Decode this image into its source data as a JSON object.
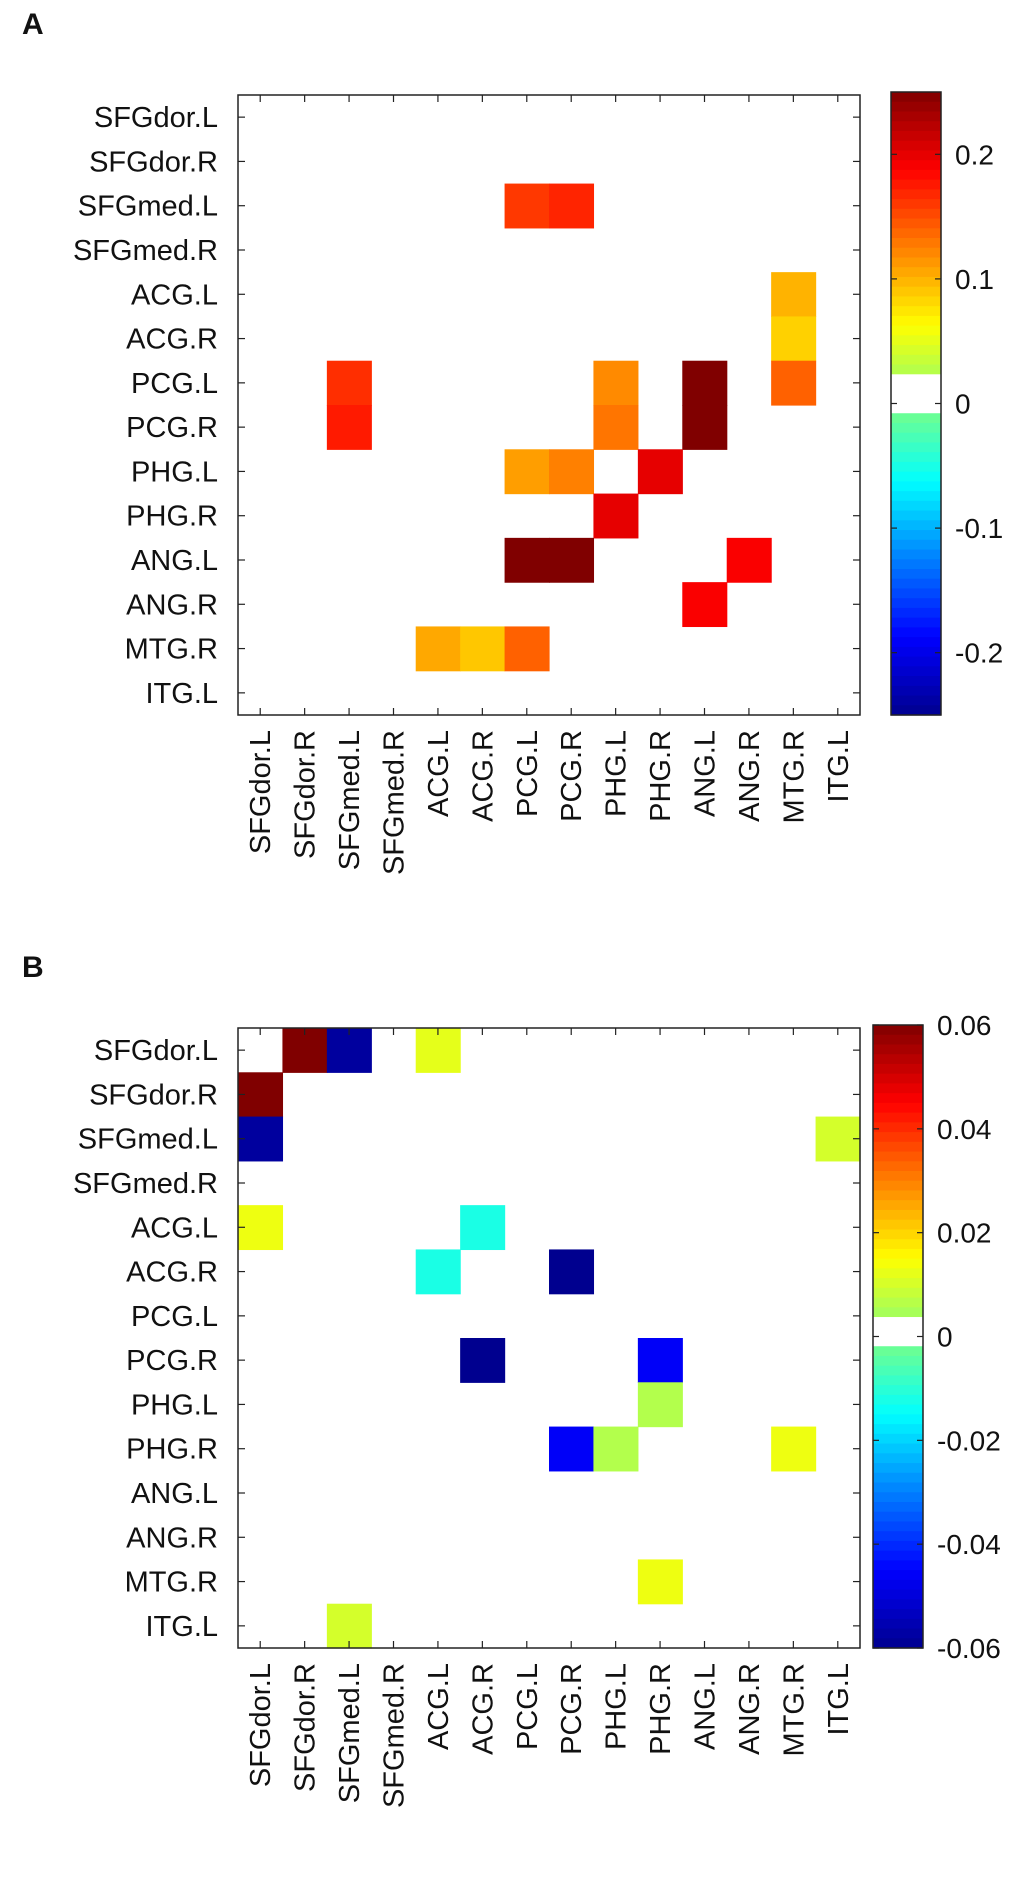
{
  "chart_data": [
    {
      "type": "heatmap",
      "panel_label": "A",
      "rows": [
        "SFGdor.L",
        "SFGdor.R",
        "SFGmed.L",
        "SFGmed.R",
        "ACG.L",
        "ACG.R",
        "PCG.L",
        "PCG.R",
        "PHG.L",
        "PHG.R",
        "ANG.L",
        "ANG.R",
        "MTG.R",
        "ITG.L"
      ],
      "columns": [
        "SFGdor.L",
        "SFGdor.R",
        "SFGmed.L",
        "SFGmed.R",
        "ACG.L",
        "ACG.R",
        "PCG.L",
        "PCG.R",
        "PHG.L",
        "PHG.R",
        "ANG.L",
        "ANG.R",
        "MTG.R",
        "ITG.L"
      ],
      "cells": [
        {
          "row": 2,
          "col": 6,
          "value": 0.16
        },
        {
          "row": 2,
          "col": 7,
          "value": 0.17
        },
        {
          "row": 4,
          "col": 12,
          "value": 0.1
        },
        {
          "row": 5,
          "col": 12,
          "value": 0.085
        },
        {
          "row": 6,
          "col": 2,
          "value": 0.165
        },
        {
          "row": 6,
          "col": 8,
          "value": 0.12
        },
        {
          "row": 6,
          "col": 10,
          "value": 0.25
        },
        {
          "row": 6,
          "col": 12,
          "value": 0.14
        },
        {
          "row": 7,
          "col": 2,
          "value": 0.175
        },
        {
          "row": 7,
          "col": 8,
          "value": 0.13
        },
        {
          "row": 7,
          "col": 10,
          "value": 0.25
        },
        {
          "row": 8,
          "col": 6,
          "value": 0.11
        },
        {
          "row": 8,
          "col": 7,
          "value": 0.125
        },
        {
          "row": 8,
          "col": 9,
          "value": 0.2
        },
        {
          "row": 9,
          "col": 8,
          "value": 0.2
        },
        {
          "row": 10,
          "col": 6,
          "value": 0.25
        },
        {
          "row": 10,
          "col": 7,
          "value": 0.25
        },
        {
          "row": 10,
          "col": 11,
          "value": 0.19
        },
        {
          "row": 11,
          "col": 10,
          "value": 0.19
        },
        {
          "row": 12,
          "col": 4,
          "value": 0.105
        },
        {
          "row": 12,
          "col": 5,
          "value": 0.09
        },
        {
          "row": 12,
          "col": 6,
          "value": 0.14
        }
      ],
      "colorbar": {
        "vmin": -0.25,
        "vmax": 0.25,
        "ticks": [
          0.2,
          0.1,
          0,
          -0.1,
          -0.2
        ],
        "tick_labels": [
          "0.2",
          "0.1",
          "0",
          "-0.1",
          "-0.2"
        ],
        "zero_band": [
          0,
          0.02
        ]
      }
    },
    {
      "type": "heatmap",
      "panel_label": "B",
      "rows": [
        "SFGdor.L",
        "SFGdor.R",
        "SFGmed.L",
        "SFGmed.R",
        "ACG.L",
        "ACG.R",
        "PCG.L",
        "PCG.R",
        "PHG.L",
        "PHG.R",
        "ANG.L",
        "ANG.R",
        "MTG.R",
        "ITG.L"
      ],
      "columns": [
        "SFGdor.L",
        "SFGdor.R",
        "SFGmed.L",
        "SFGmed.R",
        "ACG.L",
        "ACG.R",
        "PCG.L",
        "PCG.R",
        "PHG.L",
        "PHG.R",
        "ANG.L",
        "ANG.R",
        "MTG.R",
        "ITG.L"
      ],
      "cells": [
        {
          "row": 0,
          "col": 1,
          "value": 0.06
        },
        {
          "row": 0,
          "col": 2,
          "value": -0.058
        },
        {
          "row": 0,
          "col": 4,
          "value": 0.012
        },
        {
          "row": 1,
          "col": 0,
          "value": 0.06
        },
        {
          "row": 2,
          "col": 0,
          "value": -0.058
        },
        {
          "row": 2,
          "col": 13,
          "value": 0.01
        },
        {
          "row": 4,
          "col": 0,
          "value": 0.013
        },
        {
          "row": 4,
          "col": 5,
          "value": -0.012
        },
        {
          "row": 5,
          "col": 4,
          "value": -0.012
        },
        {
          "row": 5,
          "col": 7,
          "value": -0.06
        },
        {
          "row": 7,
          "col": 5,
          "value": -0.06
        },
        {
          "row": 7,
          "col": 9,
          "value": -0.046
        },
        {
          "row": 8,
          "col": 9,
          "value": 0.006
        },
        {
          "row": 9,
          "col": 7,
          "value": -0.046
        },
        {
          "row": 9,
          "col": 8,
          "value": 0.006
        },
        {
          "row": 9,
          "col": 12,
          "value": 0.013
        },
        {
          "row": 12,
          "col": 9,
          "value": 0.013
        },
        {
          "row": 13,
          "col": 2,
          "value": 0.01
        }
      ],
      "colorbar": {
        "vmin": -0.06,
        "vmax": 0.06,
        "ticks": [
          0.06,
          0.04,
          0.02,
          0,
          -0.02,
          -0.04,
          -0.06
        ],
        "tick_labels": [
          "0.06",
          "0.04",
          "0.02",
          "0",
          "-0.02",
          "-0.04",
          "-0.06"
        ],
        "zero_band": [
          0,
          0.004
        ]
      }
    }
  ]
}
